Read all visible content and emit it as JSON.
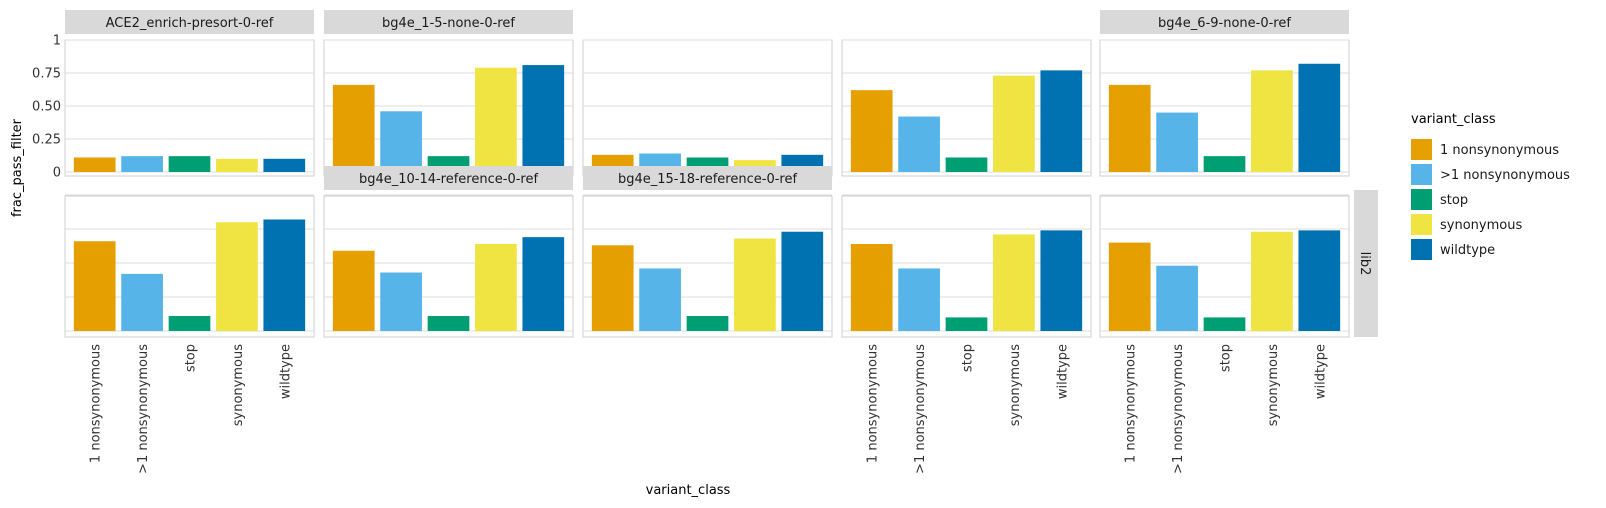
{
  "chart_data": {
    "type": "bar",
    "ylabel": "frac_pass_filter",
    "xlabel": "variant_class",
    "categories": [
      "1 nonsynonymous",
      ">1 nonsynonymous",
      "stop",
      "synonymous",
      "wildtype"
    ],
    "y_ticks": [
      "0",
      "0.25",
      "0.50",
      "0.75",
      "1"
    ],
    "ylim": [
      0,
      1.05
    ],
    "grid": true,
    "legend_position": "right",
    "legend": {
      "title": "variant_class",
      "entries": [
        "1 nonsynonymous",
        ">1 nonsynonymous",
        "stop",
        "synonymous",
        "wildtype"
      ]
    },
    "colors": [
      "#E69F00",
      "#56B4E9",
      "#009E73",
      "#F0E442",
      "#0072B2"
    ],
    "row_strip_label": "lib2",
    "panels": [
      {
        "title": "ACE2_enrich-presort-0-ref",
        "row": 1,
        "values": [
          0.11,
          0.12,
          0.12,
          0.1,
          0.1
        ]
      },
      {
        "title": "bg4e_1-5-none-0-ref",
        "row": 1,
        "values": [
          0.66,
          0.46,
          0.12,
          0.79,
          0.81
        ]
      },
      {
        "title": "",
        "row": 1,
        "values": [
          0.13,
          0.14,
          0.11,
          0.09,
          0.13
        ]
      },
      {
        "title": "",
        "row": 1,
        "values": [
          0.62,
          0.42,
          0.11,
          0.73,
          0.77
        ]
      },
      {
        "title": "bg4e_6-9-none-0-ref",
        "row": 1,
        "values": [
          0.66,
          0.45,
          0.12,
          0.77,
          0.82
        ]
      },
      {
        "title": "",
        "row": 2,
        "values": [
          0.66,
          0.42,
          0.11,
          0.8,
          0.82
        ]
      },
      {
        "title": "bg4e_10-14-reference-0-ref",
        "row": 2,
        "values": [
          0.59,
          0.43,
          0.11,
          0.64,
          0.69
        ]
      },
      {
        "title": "bg4e_15-18-reference-0-ref",
        "row": 2,
        "values": [
          0.63,
          0.46,
          0.11,
          0.68,
          0.73
        ]
      },
      {
        "title": "",
        "row": 2,
        "values": [
          0.64,
          0.46,
          0.1,
          0.71,
          0.74
        ]
      },
      {
        "title": "",
        "row": 2,
        "values": [
          0.65,
          0.48,
          0.1,
          0.73,
          0.74
        ]
      }
    ]
  }
}
